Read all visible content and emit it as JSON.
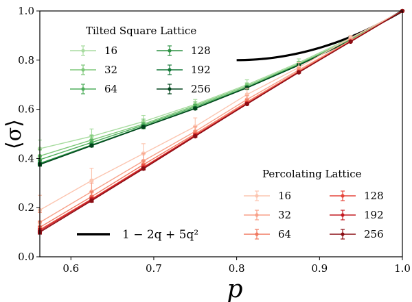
{
  "chart_data": {
    "type": "line",
    "xlabel": "p",
    "ylabel": "⟨σ⟩",
    "xlim": [
      0.5625,
      1.0
    ],
    "ylim": [
      0.0,
      1.0
    ],
    "x_ticks": [
      "0.6",
      "0.7",
      "0.8",
      "0.9",
      "1.0"
    ],
    "y_ticks": [
      "0.0",
      "0.2",
      "0.4",
      "0.6",
      "0.8",
      "1.0"
    ],
    "x": [
      0.5625,
      0.625,
      0.6875,
      0.75,
      0.8125,
      0.875,
      0.9375,
      1.0
    ],
    "groups": [
      {
        "title": "Tilted Square Lattice",
        "legend_position": "top-left",
        "series": [
          {
            "name": "16",
            "color": "#a8dca0",
            "values": [
              0.44,
              0.49,
              0.55,
              0.62,
              0.7,
              0.79,
              0.89,
              1.0
            ],
            "errors": [
              0.035,
              0.03,
              0.025,
              0.02,
              0.02,
              0.015,
              0.01,
              0.0
            ]
          },
          {
            "name": "32",
            "color": "#7ec87a",
            "values": [
              0.41,
              0.475,
              0.54,
              0.615,
              0.695,
              0.785,
              0.885,
              1.0
            ],
            "errors": [
              0.025,
              0.02,
              0.02,
              0.015,
              0.012,
              0.01,
              0.008,
              0.0
            ]
          },
          {
            "name": "64",
            "color": "#4fae5c",
            "values": [
              0.395,
              0.465,
              0.535,
              0.61,
              0.69,
              0.782,
              0.882,
              1.0
            ],
            "errors": [
              0.015,
              0.012,
              0.01,
              0.01,
              0.008,
              0.006,
              0.004,
              0.0
            ]
          },
          {
            "name": "128",
            "color": "#2c9142",
            "values": [
              0.38,
              0.455,
              0.53,
              0.605,
              0.688,
              0.78,
              0.88,
              1.0
            ],
            "errors": [
              0.01,
              0.008,
              0.007,
              0.006,
              0.005,
              0.004,
              0.003,
              0.0
            ]
          },
          {
            "name": "192",
            "color": "#15793a",
            "values": [
              0.377,
              0.453,
              0.529,
              0.604,
              0.688,
              0.78,
              0.88,
              1.0
            ],
            "errors": [
              0.008,
              0.006,
              0.005,
              0.005,
              0.004,
              0.003,
              0.002,
              0.0
            ]
          },
          {
            "name": "256",
            "color": "#00441b",
            "values": [
              0.375,
              0.452,
              0.528,
              0.603,
              0.687,
              0.779,
              0.879,
              1.0
            ],
            "errors": [
              0.006,
              0.005,
              0.004,
              0.004,
              0.003,
              0.002,
              0.002,
              0.0
            ]
          }
        ]
      },
      {
        "title": "Percolating Lattice",
        "legend_position": "lower-right",
        "series": [
          {
            "name": "16",
            "color": "#fcc5b0",
            "values": [
              0.19,
              0.31,
              0.42,
              0.53,
              0.66,
              0.77,
              0.89,
              1.0
            ],
            "errors": [
              0.06,
              0.05,
              0.04,
              0.035,
              0.025,
              0.02,
              0.01,
              0.0
            ]
          },
          {
            "name": "32",
            "color": "#f8a189",
            "values": [
              0.14,
              0.265,
              0.39,
              0.51,
              0.64,
              0.76,
              0.88,
              1.0
            ],
            "errors": [
              0.04,
              0.035,
              0.03,
              0.02,
              0.015,
              0.01,
              0.008,
              0.0
            ]
          },
          {
            "name": "64",
            "color": "#f07a62",
            "values": [
              0.12,
              0.245,
              0.375,
              0.5,
              0.63,
              0.755,
              0.878,
              1.0
            ],
            "errors": [
              0.025,
              0.02,
              0.015,
              0.012,
              0.01,
              0.008,
              0.005,
              0.0
            ]
          },
          {
            "name": "128",
            "color": "#e5453b",
            "values": [
              0.11,
              0.235,
              0.365,
              0.495,
              0.625,
              0.752,
              0.876,
              1.0
            ],
            "errors": [
              0.015,
              0.012,
              0.01,
              0.008,
              0.006,
              0.005,
              0.003,
              0.0
            ]
          },
          {
            "name": "192",
            "color": "#c41b22",
            "values": [
              0.105,
              0.232,
              0.362,
              0.493,
              0.623,
              0.751,
              0.875,
              1.0
            ],
            "errors": [
              0.01,
              0.008,
              0.007,
              0.006,
              0.005,
              0.004,
              0.002,
              0.0
            ]
          },
          {
            "name": "256",
            "color": "#8b0e15",
            "values": [
              0.1,
              0.228,
              0.358,
              0.49,
              0.621,
              0.75,
              0.875,
              1.0
            ],
            "errors": [
              0.008,
              0.006,
              0.005,
              0.004,
              0.003,
              0.003,
              0.002,
              0.0
            ]
          }
        ]
      }
    ],
    "reference_curve": {
      "label": "1 − 2q + 5q²",
      "color": "#000000",
      "x_range": [
        0.8,
        1.0
      ]
    }
  }
}
